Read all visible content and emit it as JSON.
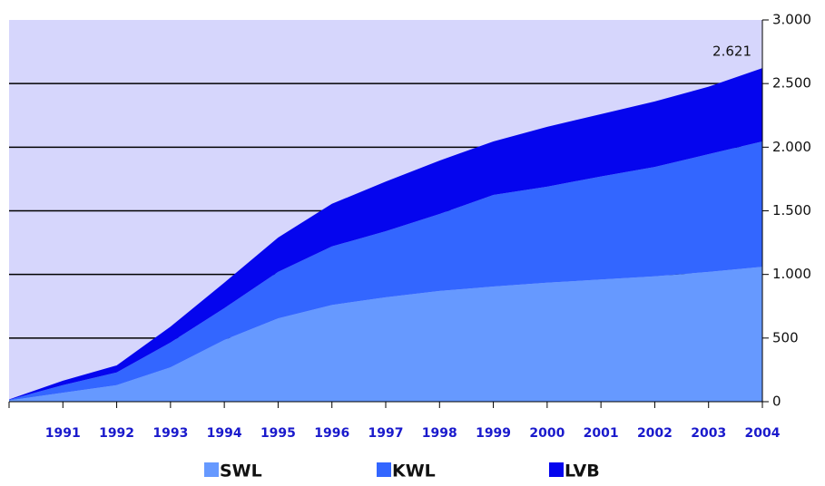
{
  "chart_data": {
    "type": "area",
    "stacked": true,
    "categories": [
      null,
      "1991",
      "1992",
      "1993",
      "1994",
      "1995",
      "1996",
      "1997",
      "1998",
      "1999",
      "2000",
      "2001",
      "2002",
      "2003",
      "2004"
    ],
    "series": [
      {
        "name": "SWL",
        "color": "#6699ff",
        "values": [
          10,
          70,
          130,
          270,
          485,
          655,
          760,
          820,
          870,
          905,
          935,
          960,
          985,
          1020,
          1060
        ]
      },
      {
        "name": "KWL",
        "color": "#3366ff",
        "values": [
          5,
          60,
          100,
          195,
          250,
          365,
          460,
          520,
          605,
          720,
          755,
          810,
          860,
          925,
          985
        ]
      },
      {
        "name": "LVB",
        "color": "#0505ee",
        "values": [
          3,
          35,
          55,
          125,
          200,
          270,
          335,
          390,
          420,
          420,
          470,
          490,
          515,
          530,
          576
        ]
      }
    ],
    "annotations": [
      {
        "text": "2.621",
        "value": 2621
      }
    ],
    "ylim": [
      0,
      3000
    ],
    "yticks": [
      0,
      500,
      {
        "value": 1000,
        "label": "1.000"
      },
      {
        "value": 1500,
        "label": "1.500"
      },
      {
        "value": 2000,
        "label": "2.000"
      },
      {
        "value": 2500,
        "label": "2.500"
      },
      {
        "value": 3000,
        "label": "3.000"
      }
    ],
    "grid": true,
    "background": "#d6d6fc",
    "legend": "bottom"
  }
}
